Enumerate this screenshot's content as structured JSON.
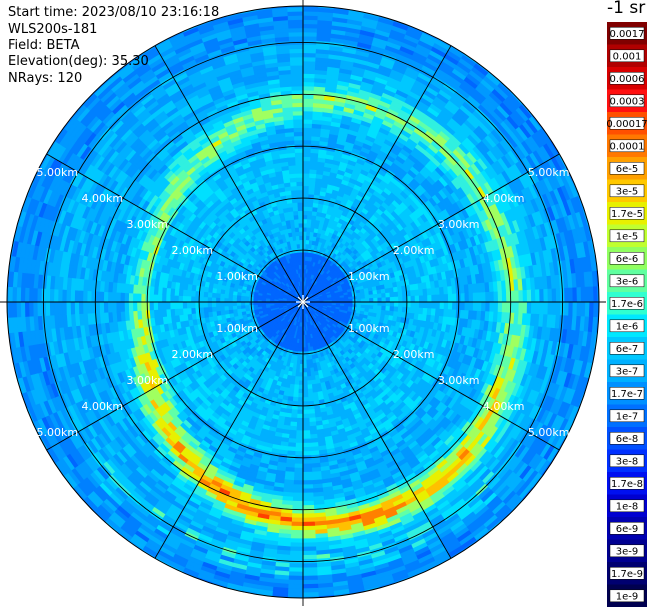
{
  "info": {
    "start_time": "Start time: 2023/08/10 23:16:18",
    "instrument": "WLS200s-181",
    "field": "Field: BETA",
    "elevation": "Elevation(deg): 35.30",
    "nrays": "NRays: 120"
  },
  "colorbar": {
    "units": "-1 sr",
    "labels": [
      "0.0017",
      "0.001",
      "0.0006",
      "0.0003",
      "0.00017",
      "0.0001",
      "6e-5",
      "3e-5",
      "1.7e-5",
      "1e-5",
      "6e-6",
      "3e-6",
      "1.7e-6",
      "1e-6",
      "6e-7",
      "3e-7",
      "1.7e-7",
      "1e-7",
      "6e-8",
      "3e-8",
      "1.7e-8",
      "1e-8",
      "6e-9",
      "3e-9",
      "1.7e-9",
      "1e-9"
    ],
    "colors": [
      "#800000",
      "#b00000",
      "#d80000",
      "#ff1010",
      "#ff5000",
      "#ff7800",
      "#ffa000",
      "#ffc800",
      "#e8f000",
      "#c0ff30",
      "#90ff60",
      "#60ffa0",
      "#30ffd0",
      "#00e8ff",
      "#00c8ff",
      "#00b0ff",
      "#0090ff",
      "#0070ff",
      "#0050ff",
      "#0030ff",
      "#0010f0",
      "#0000d0",
      "#0000b0",
      "#000090",
      "#000070",
      "#000050"
    ]
  },
  "chart_data": {
    "type": "heatmap",
    "projection": "polar (PPI scan)",
    "field": "BETA",
    "elevation_deg": 35.3,
    "nrays": 120,
    "range_rings_km": [
      1,
      2,
      3,
      4,
      5
    ],
    "range_labels": [
      "1.00km",
      "2.00km",
      "3.00km",
      "4.00km",
      "5.00km"
    ],
    "max_range_km": 5.7,
    "radial_spokes_deg": [
      0,
      30,
      60,
      90,
      120,
      150,
      180,
      210,
      240,
      270,
      300,
      330
    ],
    "description_of_field": "low backscatter near centre, ring of enhanced backscatter at roughly 3.0-4.8 km range"
  }
}
